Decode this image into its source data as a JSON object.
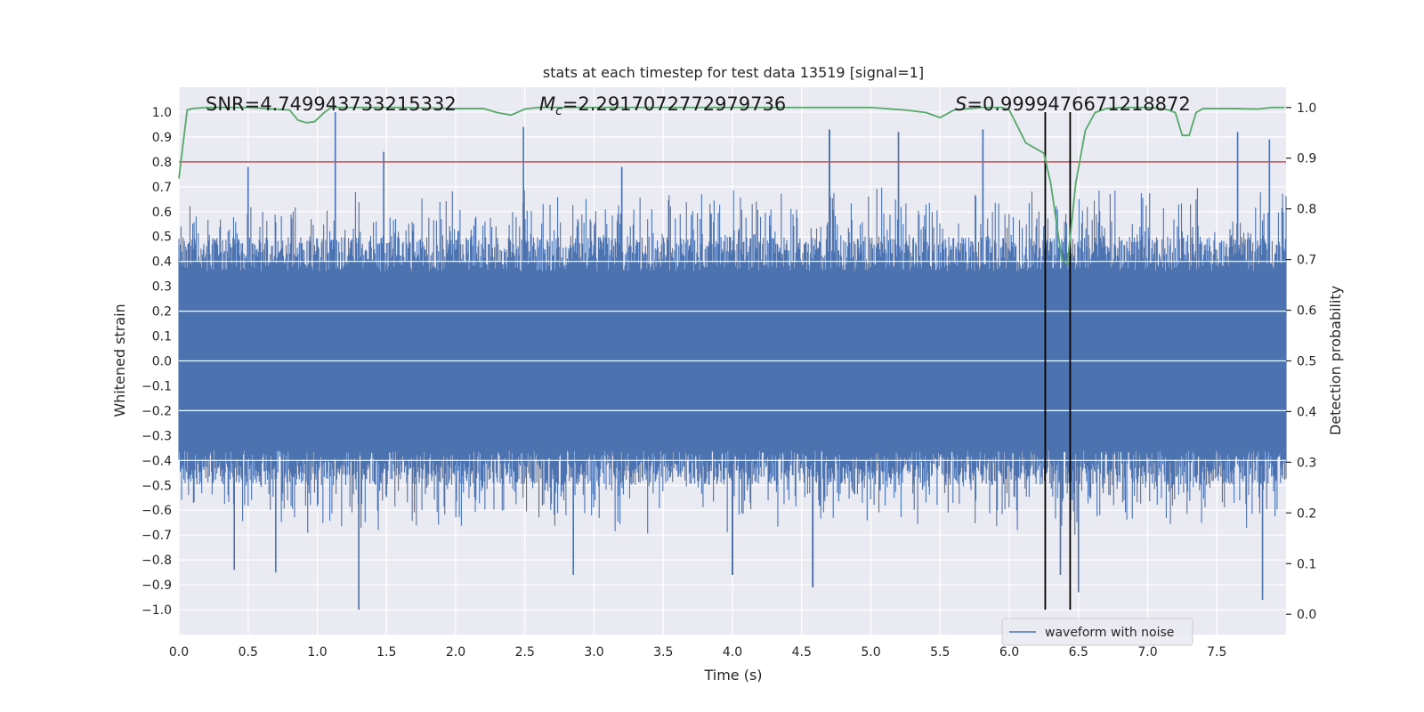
{
  "chart_data": {
    "type": "line",
    "title": "stats at each timestep for test data 13519 [signal=1]",
    "xlabel": "Time (s)",
    "ylabel": "Whitened strain",
    "y2label": "Detection probability",
    "xlim": [
      0.0,
      8.0
    ],
    "ylim": [
      -1.1,
      1.1
    ],
    "y2lim": [
      -0.04,
      1.04
    ],
    "x_ticks": [
      0.0,
      0.5,
      1.0,
      1.5,
      2.0,
      2.5,
      3.0,
      3.5,
      4.0,
      4.5,
      5.0,
      5.5,
      6.0,
      6.5,
      7.0,
      7.5
    ],
    "x_tick_labels": [
      "0.0",
      "0.5",
      "1.0",
      "1.5",
      "2.0",
      "2.5",
      "3.0",
      "3.5",
      "4.0",
      "4.5",
      "5.0",
      "5.5",
      "6.0",
      "6.5",
      "7.0",
      "7.5"
    ],
    "y_ticks": [
      1.0,
      0.9,
      0.8,
      0.7,
      0.6,
      0.5,
      0.4,
      0.3,
      0.2,
      0.1,
      0.0,
      -0.1,
      -0.2,
      -0.3,
      -0.4,
      -0.5,
      -0.6,
      -0.7,
      -0.8,
      -0.9,
      -1.0
    ],
    "y_tick_labels": [
      "1.0",
      "0.9",
      "0.8",
      "0.7",
      "0.6",
      "0.5",
      "0.4",
      "0.3",
      "0.2",
      "0.1",
      "0.0",
      "−0.1",
      "−0.2",
      "−0.3",
      "−0.4",
      "−0.5",
      "−0.6",
      "−0.7",
      "−0.8",
      "−0.9",
      "−1.0"
    ],
    "y2_ticks": [
      1.0,
      0.9,
      0.8,
      0.7,
      0.6,
      0.5,
      0.4,
      0.3,
      0.2,
      0.1,
      0.0
    ],
    "y2_tick_labels": [
      "1.0",
      "0.9",
      "0.8",
      "0.7",
      "0.6",
      "0.5",
      "0.4",
      "0.3",
      "0.2",
      "0.1",
      "0.0"
    ],
    "grid": true,
    "legend": {
      "location": "lower-right",
      "entries": [
        "waveform with noise"
      ]
    },
    "annotations": {
      "snr": "SNR=4.749943733215332",
      "mc_symbol": "M",
      "mc_sub": "c",
      "mc_value": "=2.2917072772979736",
      "s_symbol": "S",
      "s_value": "=0.9999476671218872"
    },
    "series": [
      {
        "name": "waveform with noise",
        "axis": "left",
        "color": "#4c72b0",
        "x_range": [
          0.0,
          8.0
        ],
        "n_samples": 1600,
        "typical_range": [
          -0.4,
          0.4
        ],
        "peaks": [
          {
            "x": 1.13,
            "y": 1.0
          },
          {
            "x": 1.48,
            "y": 0.84
          },
          {
            "x": 2.49,
            "y": 0.94
          },
          {
            "x": 4.7,
            "y": 0.93
          },
          {
            "x": 5.2,
            "y": 0.92
          },
          {
            "x": 5.81,
            "y": 0.93
          },
          {
            "x": 7.65,
            "y": 0.92
          },
          {
            "x": 7.88,
            "y": 0.89
          },
          {
            "x": 0.5,
            "y": 0.78
          },
          {
            "x": 3.2,
            "y": 0.78
          }
        ],
        "troughs": [
          {
            "x": 1.3,
            "y": -1.0
          },
          {
            "x": 4.58,
            "y": -0.91
          },
          {
            "x": 7.83,
            "y": -0.96
          },
          {
            "x": 6.37,
            "y": -0.86
          },
          {
            "x": 4.0,
            "y": -0.86
          },
          {
            "x": 2.85,
            "y": -0.86
          },
          {
            "x": 0.7,
            "y": -0.85
          },
          {
            "x": 0.4,
            "y": -0.84
          },
          {
            "x": 6.5,
            "y": -0.93
          }
        ]
      },
      {
        "name": "detection probability",
        "axis": "right",
        "color": "#55a868",
        "x": [
          0.0,
          0.06,
          0.1,
          0.2,
          0.5,
          0.8,
          0.86,
          0.92,
          0.98,
          1.05,
          1.1,
          1.3,
          1.6,
          2.0,
          2.2,
          2.3,
          2.4,
          2.5,
          2.6,
          3.0,
          4.0,
          5.0,
          5.25,
          5.4,
          5.5,
          5.6,
          5.8,
          5.95,
          6.0,
          6.12,
          6.25,
          6.3,
          6.38,
          6.42,
          6.48,
          6.55,
          6.62,
          6.7,
          6.8,
          7.0,
          7.1,
          7.15,
          7.2,
          7.25,
          7.3,
          7.35,
          7.4,
          7.6,
          7.8,
          7.9,
          7.99
        ],
        "y": [
          0.86,
          0.995,
          0.998,
          1.0,
          1.0,
          0.995,
          0.975,
          0.97,
          0.972,
          0.99,
          1.0,
          1.0,
          1.0,
          0.998,
          0.998,
          0.99,
          0.985,
          0.997,
          1.0,
          1.0,
          1.0,
          1.0,
          0.995,
          0.99,
          0.98,
          0.995,
          1.0,
          1.0,
          0.995,
          0.93,
          0.91,
          0.85,
          0.7,
          0.69,
          0.85,
          0.955,
          0.99,
          0.998,
          1.0,
          1.0,
          0.998,
          0.995,
          0.99,
          0.945,
          0.945,
          0.99,
          0.998,
          0.998,
          0.997,
          1.0,
          1.0
        ]
      }
    ],
    "threshold": {
      "axis": "left",
      "y": 0.8,
      "color": "#c44e52"
    },
    "markers": {
      "axis": "left",
      "x": [
        6.26,
        6.44
      ],
      "y_range": [
        -1.0,
        1.0
      ],
      "color": "#000000"
    }
  }
}
